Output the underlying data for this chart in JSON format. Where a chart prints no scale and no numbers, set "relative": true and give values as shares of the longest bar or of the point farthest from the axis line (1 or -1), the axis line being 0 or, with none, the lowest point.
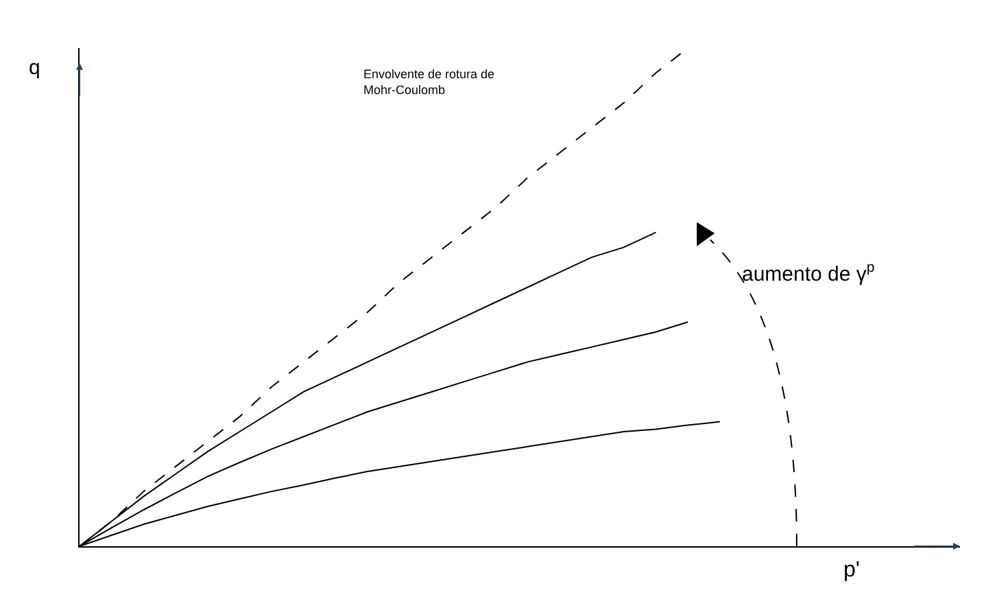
{
  "chart_data": {
    "type": "line",
    "relative": true,
    "xlabel": "p'",
    "ylabel": "q",
    "annotations": [
      "Envolvente de rotura de\nMohr-Coulomb",
      "aumento de γ$^{p}$"
    ],
    "marker": "none",
    "categories": [
      null,
      null,
      null,
      null,
      null,
      null,
      null,
      null,
      null,
      null,
      null,
      null,
      null,
      null,
      null,
      null,
      null,
      null,
      null,
      null,
      null
    ],
    "series": [
      {
        "values": [
          0,
          0.05,
          0.11,
          0.16,
          0.21,
          0.26,
          0.32,
          0.37,
          0.42,
          0.47,
          0.53,
          0.58,
          0.63,
          0.68,
          0.74,
          0.79,
          0.84,
          0.89,
          0.95,
          1.0,
          null
        ],
        "color": "#000000",
        "line_style": "dashed"
      },
      {
        "values": [
          0,
          0.05,
          0.1,
          0.145,
          0.19,
          0.23,
          0.27,
          0.31,
          0.34,
          0.37,
          0.4,
          0.43,
          0.46,
          0.49,
          0.52,
          0.55,
          0.58,
          0.6,
          0.63,
          null,
          null
        ],
        "color": "#000000",
        "line_style": "solid"
      },
      {
        "values": [
          0,
          0.037,
          0.073,
          0.107,
          0.14,
          0.168,
          0.195,
          0.22,
          0.245,
          0.27,
          0.29,
          0.31,
          0.33,
          0.35,
          0.37,
          0.385,
          0.4,
          0.415,
          0.43,
          0.45,
          null
        ],
        "color": "#000000",
        "line_style": "solid"
      },
      {
        "values": [
          0,
          0.022,
          0.044,
          0.062,
          0.08,
          0.095,
          0.11,
          0.123,
          0.137,
          0.15,
          0.16,
          0.17,
          0.18,
          0.19,
          0.2,
          0.21,
          0.22,
          0.23,
          0.235,
          0.243,
          0.25
        ],
        "color": "#000000",
        "line_style": "solid"
      }
    ]
  }
}
